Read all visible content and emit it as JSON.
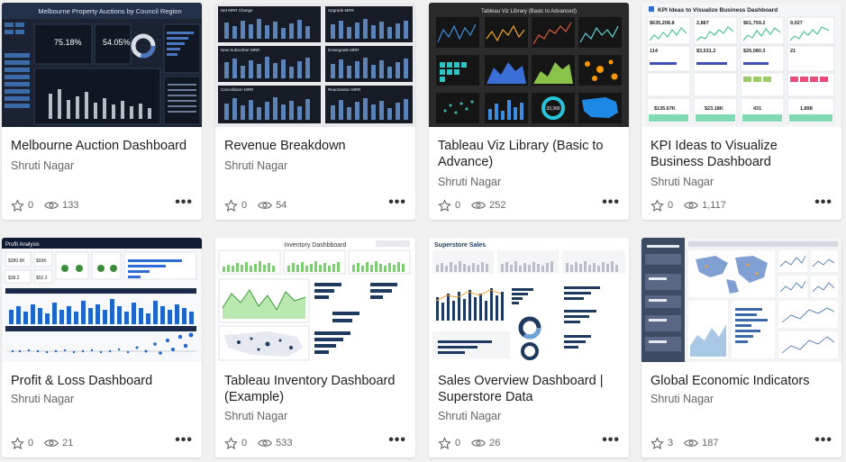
{
  "cards": [
    {
      "title": "Melbourne Auction Dashboard",
      "author": "Shruti Nagar",
      "favorites": "0",
      "views": "133",
      "thumb_heading": "Melbourne Property Auctions by Council Region"
    },
    {
      "title": "Revenue Breakdown",
      "author": "Shruti Nagar",
      "favorites": "0",
      "views": "54",
      "thumb_labels": [
        "Net MRR Change",
        "Upgrade MRR",
        "New Subscriber MRR",
        "Downgrade MRR",
        "Cancellation MRR",
        "Reactivation MRR"
      ]
    },
    {
      "title": "Tableau Viz Library (Basic to Advance)",
      "author": "Shruti Nagar",
      "favorites": "0",
      "views": "252",
      "thumb_heading": "Tableau Viz Library (Basic to Advanced)"
    },
    {
      "title": "KPI Ideas to Visualize Business Dashboard",
      "author": "Shruti Nagar",
      "favorites": "0",
      "views": "1,117",
      "thumb_heading": "KPI Ideas to Visualize Business Dashboard"
    },
    {
      "title": "Profit & Loss Dashboard",
      "author": "Shruti Nagar",
      "favorites": "0",
      "views": "21",
      "thumb_heading": "Profit Analysis"
    },
    {
      "title": "Tableau Inventory Dashboard (Example)",
      "author": "Shruti Nagar",
      "favorites": "0",
      "views": "533",
      "thumb_heading": "Inventory Dashbboard"
    },
    {
      "title": "Sales Overview Dashboard | Superstore Data",
      "author": "Shruti Nagar",
      "favorites": "0",
      "views": "26",
      "thumb_heading": "Superstore Sales"
    },
    {
      "title": "Global Economic Indicators",
      "author": "Shruti Nagar",
      "favorites": "3",
      "views": "187"
    }
  ],
  "icons": {
    "favorite": "star-outline-icon",
    "views": "eye-icon",
    "more": "more-horizontal-icon"
  },
  "more_label": "•••"
}
